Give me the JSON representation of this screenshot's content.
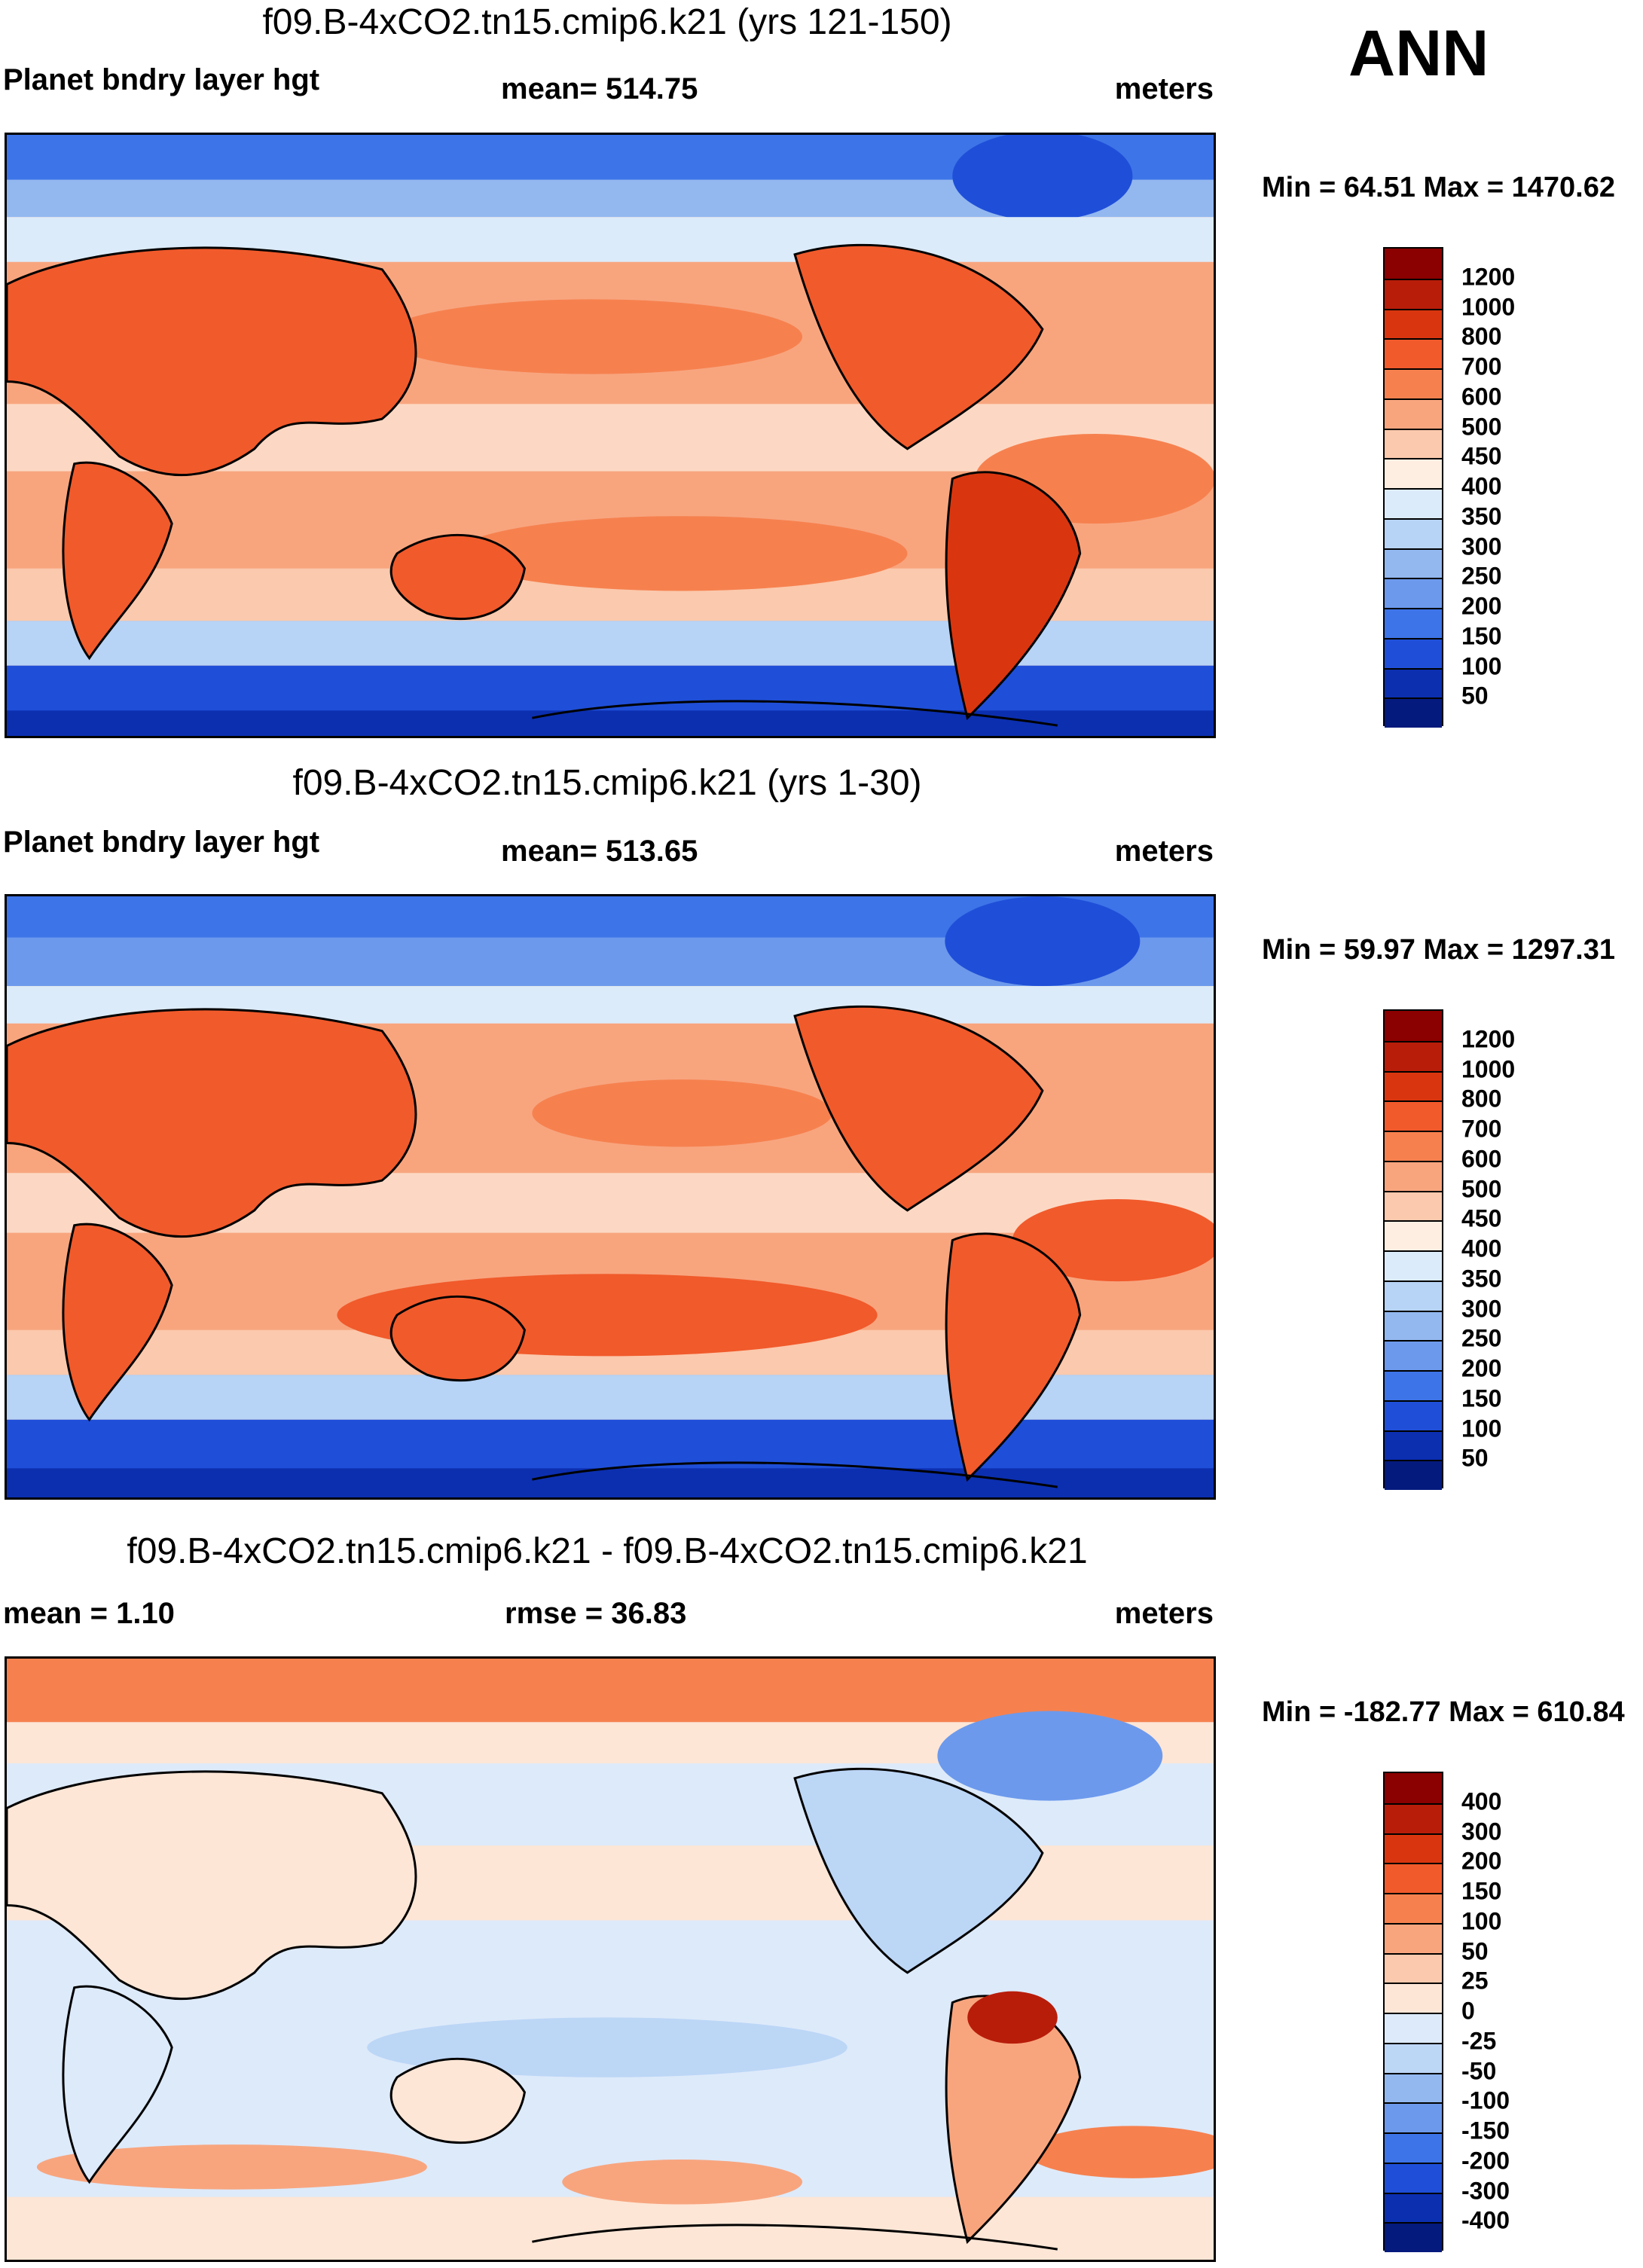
{
  "chart_data": [
    {
      "type": "heatmap",
      "title": "f09.B-4xCO2.tn15.cmip6.k21 (yrs 121-150)",
      "variable": "Planet bndry layer hgt",
      "mean_text": "mean= 514.75",
      "units": "meters",
      "minmax_text": "Min =  64.51 Max = 1470.62",
      "min": 64.51,
      "max": 1470.62,
      "levels": [
        "1200",
        "1000",
        "800",
        "700",
        "600",
        "500",
        "450",
        "400",
        "350",
        "300",
        "250",
        "200",
        "150",
        "100",
        "50"
      ],
      "colors": [
        "#8b0000",
        "#b81d0a",
        "#d9360f",
        "#f15a2b",
        "#f6814f",
        "#f8a57e",
        "#fbc9ad",
        "#feeee2",
        "#dcebf9",
        "#b7d3f5",
        "#93b8f0",
        "#6c99ec",
        "#3d74e8",
        "#1f4fd8",
        "#0c2fb0",
        "#051a7d"
      ]
    },
    {
      "type": "heatmap",
      "title": "f09.B-4xCO2.tn15.cmip6.k21 (yrs 1-30)",
      "variable": "Planet bndry layer hgt",
      "mean_text": "mean= 513.65",
      "units": "meters",
      "minmax_text": "Min =  59.97 Max = 1297.31",
      "min": 59.97,
      "max": 1297.31,
      "levels": [
        "1200",
        "1000",
        "800",
        "700",
        "600",
        "500",
        "450",
        "400",
        "350",
        "300",
        "250",
        "200",
        "150",
        "100",
        "50"
      ],
      "colors": [
        "#8b0000",
        "#b81d0a",
        "#d9360f",
        "#f15a2b",
        "#f6814f",
        "#f8a57e",
        "#fbc9ad",
        "#feeee2",
        "#dcebf9",
        "#b7d3f5",
        "#93b8f0",
        "#6c99ec",
        "#3d74e8",
        "#1f4fd8",
        "#0c2fb0",
        "#051a7d"
      ]
    },
    {
      "type": "heatmap",
      "title": "f09.B-4xCO2.tn15.cmip6.k21 - f09.B-4xCO2.tn15.cmip6.k21",
      "mean_text": "mean =   1.10",
      "rmse_text": "rmse =  36.83",
      "units": "meters",
      "minmax_text": "Min = -182.77 Max = 610.84",
      "min": -182.77,
      "max": 610.84,
      "levels": [
        "400",
        "300",
        "200",
        "150",
        "100",
        "50",
        "25",
        "0",
        "-25",
        "-50",
        "-100",
        "-150",
        "-200",
        "-300",
        "-400"
      ],
      "colors": [
        "#8b0000",
        "#b81d0a",
        "#d9360f",
        "#f15a2b",
        "#f6814f",
        "#f8a57e",
        "#fbc9ad",
        "#fde6d6",
        "#ddeafa",
        "#bcd6f6",
        "#93b8f0",
        "#6c99ec",
        "#3d74e8",
        "#1f4fd8",
        "#0c2fb0",
        "#051a7d"
      ]
    }
  ],
  "season": "ANN",
  "palette": {
    "warm_bg": "#f8a57e",
    "cool_bg": "#3d74e8",
    "neutral_bg": "#fde6d6",
    "land": "#f15a2b",
    "coast": "#000000"
  }
}
